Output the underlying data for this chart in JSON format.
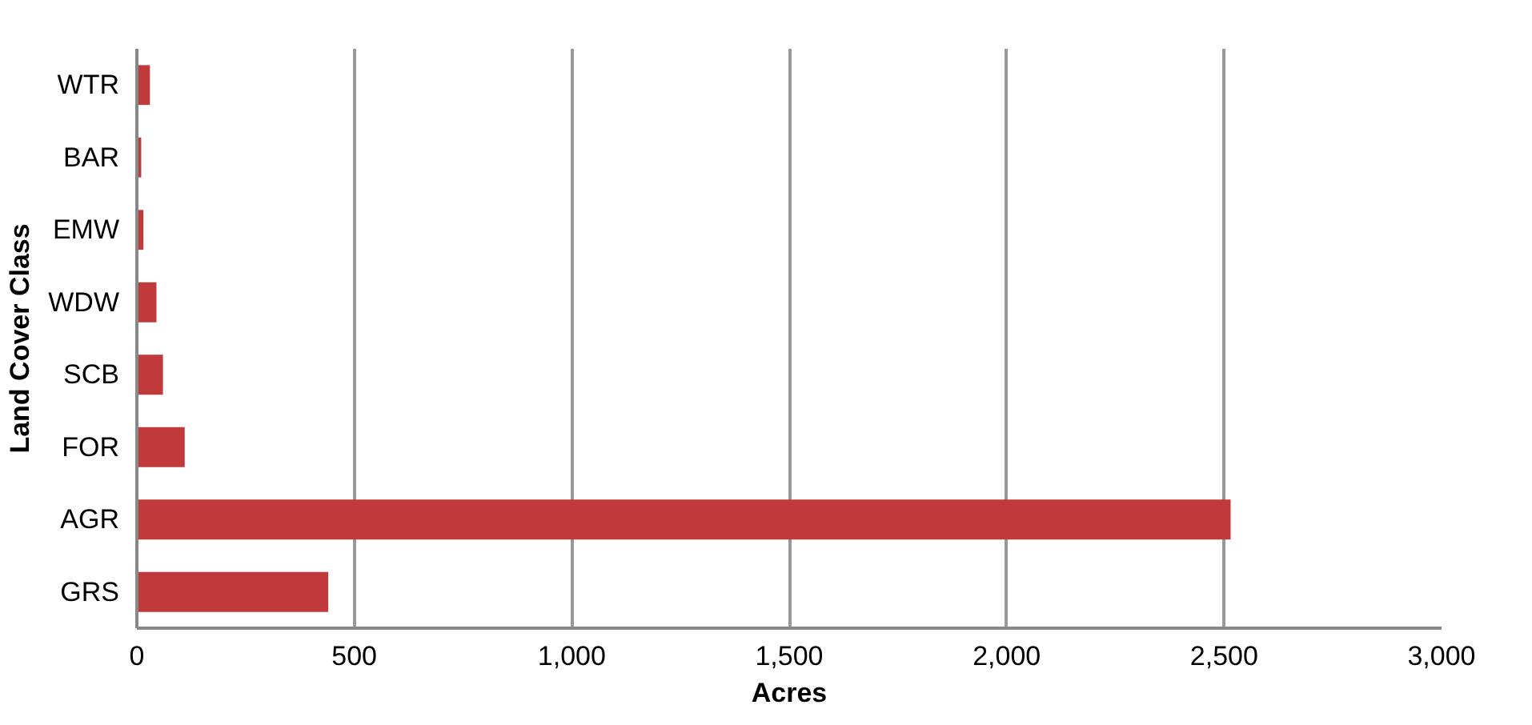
{
  "chart_data": {
    "type": "bar",
    "orientation": "horizontal",
    "xlabel": "Acres",
    "ylabel": "Land Cover Class",
    "categories": [
      "WTR",
      "BAR",
      "EMW",
      "WDW",
      "SCB",
      "FOR",
      "AGR",
      "GRS"
    ],
    "values": [
      30,
      10,
      15,
      45,
      60,
      110,
      2515,
      440
    ],
    "color": "#c0393b",
    "xlim": [
      0,
      3000
    ],
    "xticks": [
      0,
      {
        "value": 500,
        "label": "500"
      },
      {
        "value": 1000,
        "label": "1,000"
      },
      {
        "value": 1500,
        "label": "1,500"
      },
      {
        "value": 2000,
        "label": "2,000"
      },
      {
        "value": 2500,
        "label": "2,500"
      },
      {
        "value": 3000,
        "label": "3,000"
      }
    ],
    "grid": "x"
  }
}
